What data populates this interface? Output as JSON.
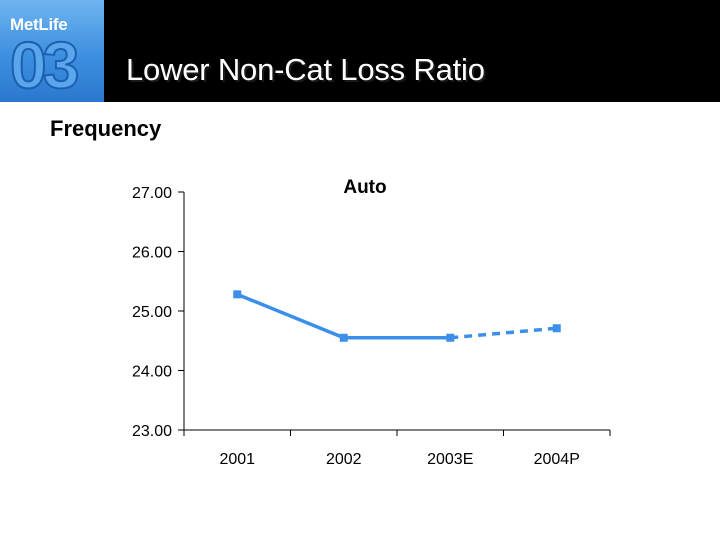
{
  "header": {
    "logo_text": "MetLife",
    "logo_number": "03",
    "title": "Lower Non-Cat Loss Ratio"
  },
  "subtitle": "Frequency",
  "colors": {
    "header_bg": "#000000",
    "logo_blue": "#3d8fe0",
    "series": "#3b8fe8"
  },
  "chart_data": {
    "type": "line",
    "title": "Auto",
    "categories": [
      "2001",
      "2002",
      "2003E",
      "2004P"
    ],
    "y_ticks": [
      "23.00",
      "24.00",
      "25.00",
      "26.00",
      "27.00"
    ],
    "ylim": [
      23,
      27
    ],
    "series": [
      {
        "values": [
          25.28,
          24.55,
          24.55,
          24.71
        ],
        "solid_through_index": 2,
        "dashed_after_index": 2
      }
    ],
    "grid": false,
    "legend": "none"
  }
}
